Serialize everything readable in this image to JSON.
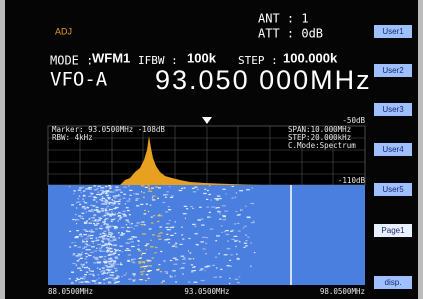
{
  "header": {
    "adj": "ADJ",
    "ant": "ANT : 1",
    "att": "ATT : 0dB"
  },
  "status": {
    "mode_label": "MODE :",
    "mode_value": "WFM1",
    "ifbw_label": "IFBW :",
    "ifbw_value": "100k",
    "step_label": "STEP :",
    "step_value": "100.000k",
    "vfo": "VFO-A",
    "frequency": "93.050 000MHz"
  },
  "spectrum": {
    "marker": "Marker: 93.0500MHz -108dB",
    "rbw": "RBW: 4kHz",
    "span": "SPAN:10.000MHz",
    "step": "STEP:20.000kHz",
    "cmode": "C.Mode:Spectrum",
    "top_level": "-50dB",
    "bottom_level": "-110dB",
    "freq_start": "88.0500MHz",
    "freq_center": "93.0500MHz",
    "freq_end": "98.0500MHz"
  },
  "buttons": [
    "User1",
    "User2",
    "User3",
    "User4",
    "User5",
    "Page1",
    "disp."
  ]
}
